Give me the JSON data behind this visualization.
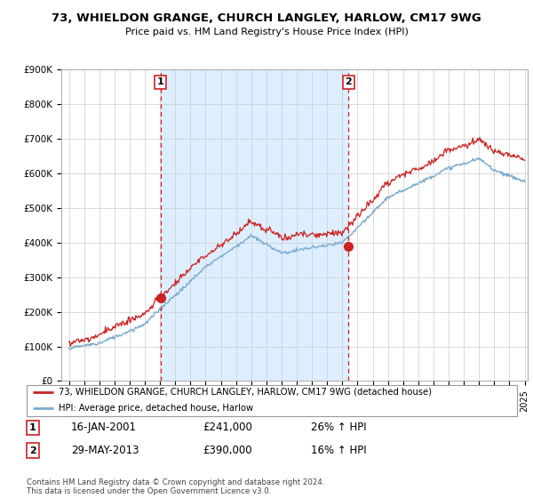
{
  "title": "73, WHIELDON GRANGE, CHURCH LANGLEY, HARLOW, CM17 9WG",
  "subtitle": "Price paid vs. HM Land Registry's House Price Index (HPI)",
  "ylim": [
    0,
    900000
  ],
  "yticks": [
    0,
    100000,
    200000,
    300000,
    400000,
    500000,
    600000,
    700000,
    800000,
    900000
  ],
  "ytick_labels": [
    "£0",
    "£100K",
    "£200K",
    "£300K",
    "£400K",
    "£500K",
    "£600K",
    "£700K",
    "£800K",
    "£900K"
  ],
  "sale1_year": 2001.04,
  "sale1_price": 241000,
  "sale2_year": 2013.4,
  "sale2_price": 390000,
  "line_color_red": "#cc2222",
  "line_color_blue": "#7aabcf",
  "shade_color": "#ddeeff",
  "vline_color": "#cc2222",
  "grid_color": "#cccccc",
  "legend_entry1": "73, WHIELDON GRANGE, CHURCH LANGLEY, HARLOW, CM17 9WG (detached house)",
  "legend_entry2": "HPI: Average price, detached house, Harlow",
  "footnote": "Contains HM Land Registry data © Crown copyright and database right 2024.\nThis data is licensed under the Open Government Licence v3.0.",
  "table_row1": [
    "1",
    "16-JAN-2001",
    "£241,000",
    "26% ↑ HPI"
  ],
  "table_row2": [
    "2",
    "29-MAY-2013",
    "£390,000",
    "16% ↑ HPI"
  ],
  "xstart": 1995,
  "xend": 2025
}
